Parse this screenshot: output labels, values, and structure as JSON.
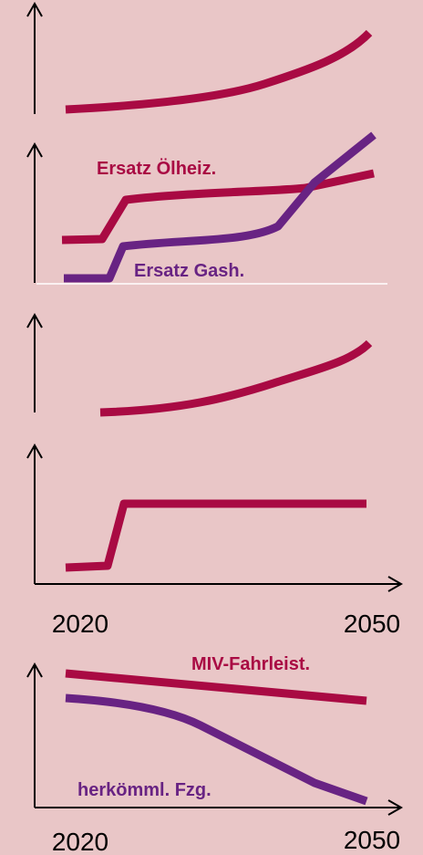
{
  "panels": [
    {
      "labels": []
    },
    {
      "labels": [
        "Ersatz Ölheiz.",
        "Ersatz Gash."
      ]
    },
    {
      "labels": []
    },
    {
      "labels": [],
      "x_labels": [
        "2020",
        "2050"
      ]
    },
    {
      "labels": [
        "MIV-Fahrleist.",
        "herkömml. Fzg."
      ],
      "x_labels": [
        "2020",
        "2050"
      ]
    }
  ]
}
